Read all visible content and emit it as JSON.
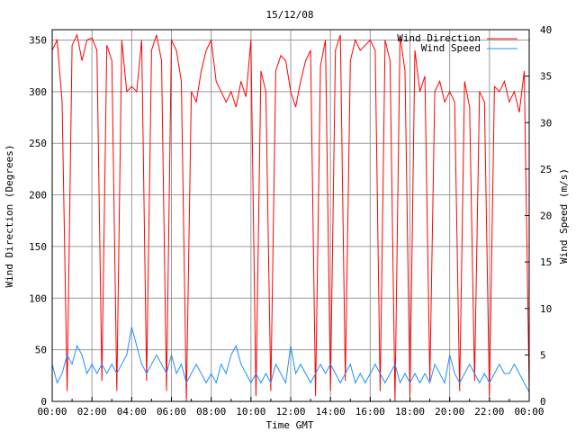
{
  "chart_data": {
    "type": "line",
    "title": "15/12/08",
    "xlabel": "Time GMT",
    "ylabel": "Wind Direction (Degrees)",
    "y2label": "Wind Speed (m/s)",
    "xticks": [
      "00:00",
      "02:00",
      "04:00",
      "06:00",
      "08:00",
      "10:00",
      "12:00",
      "14:00",
      "16:00",
      "18:00",
      "20:00",
      "22:00",
      "00:00"
    ],
    "yticks": [
      0,
      50,
      100,
      150,
      200,
      250,
      300,
      350
    ],
    "y2ticks": [
      0,
      5,
      10,
      15,
      20,
      25,
      30,
      35,
      40
    ],
    "xlim_hours": [
      0,
      24
    ],
    "ylim": [
      0,
      360
    ],
    "y2lim": [
      0,
      40
    ],
    "grid": true,
    "legend_position": "top-right",
    "sample_interval_minutes": 15,
    "series": [
      {
        "name": "Wind Direction",
        "axis": "left",
        "color": "#ff0000",
        "values": [
          340,
          350,
          290,
          10,
          345,
          355,
          330,
          350,
          352,
          340,
          20,
          345,
          330,
          10,
          350,
          300,
          305,
          300,
          350,
          20,
          340,
          355,
          330,
          10,
          350,
          340,
          310,
          0,
          300,
          290,
          320,
          340,
          350,
          310,
          300,
          290,
          300,
          285,
          310,
          295,
          350,
          5,
          320,
          300,
          10,
          320,
          335,
          330,
          300,
          285,
          310,
          330,
          340,
          5,
          325,
          350,
          10,
          340,
          355,
          20,
          330,
          350,
          340,
          345,
          350,
          340,
          10,
          350,
          330,
          0,
          355,
          320,
          5,
          340,
          300,
          315,
          20,
          300,
          310,
          290,
          300,
          290,
          10,
          310,
          285,
          20,
          300,
          290,
          5,
          305,
          300,
          310,
          290,
          300,
          280,
          320,
          10
        ]
      },
      {
        "name": "Wind Speed",
        "axis": "right",
        "color": "#1e90ff",
        "values": [
          4,
          2,
          3,
          5,
          4,
          6,
          5,
          3,
          4,
          3,
          4,
          3,
          4,
          3,
          4,
          5,
          8,
          6,
          4,
          3,
          4,
          5,
          4,
          3,
          5,
          3,
          4,
          2,
          3,
          4,
          3,
          2,
          3,
          2,
          4,
          3,
          5,
          6,
          4,
          3,
          2,
          3,
          2,
          3,
          2,
          4,
          3,
          2,
          6,
          3,
          4,
          3,
          2,
          3,
          4,
          3,
          4,
          3,
          2,
          3,
          4,
          2,
          3,
          2,
          3,
          4,
          3,
          2,
          3,
          4,
          2,
          3,
          2,
          3,
          2,
          3,
          2,
          4,
          3,
          2,
          5,
          3,
          2,
          3,
          4,
          3,
          2,
          3,
          2,
          3,
          4,
          3,
          3,
          4,
          3,
          2,
          1
        ]
      }
    ]
  }
}
